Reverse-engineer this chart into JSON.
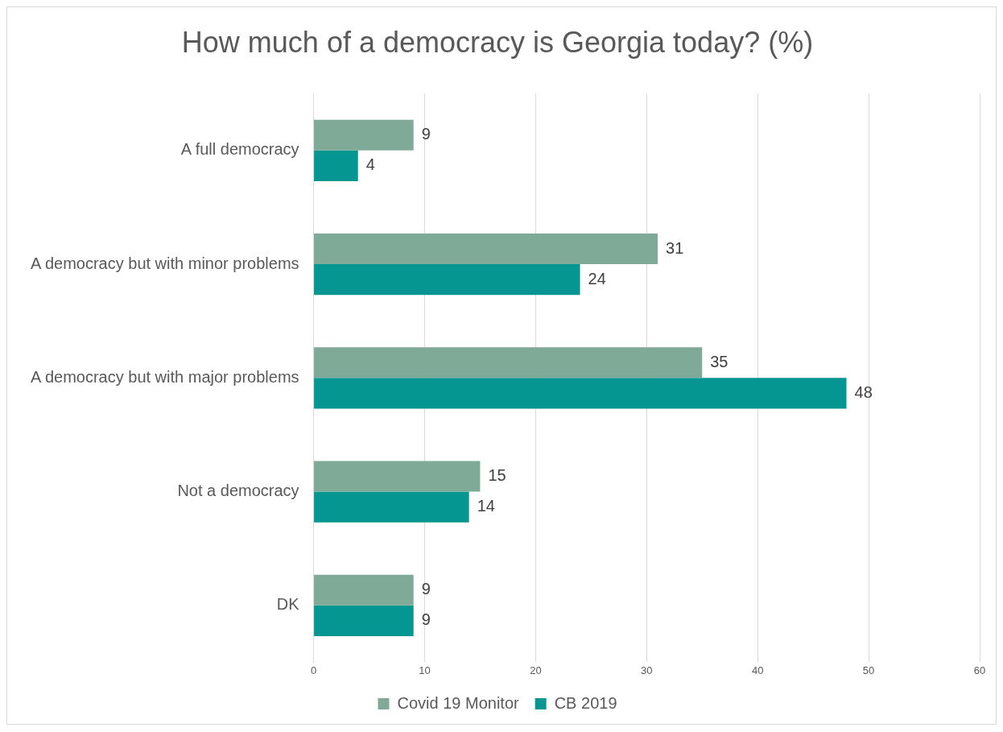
{
  "chart_data": {
    "type": "bar",
    "orientation": "horizontal",
    "title": "How much of a democracy is Georgia today? (%)",
    "categories": [
      "A full democracy",
      "A democracy but with minor problems",
      "A democracy but with major problems",
      "Not a democracy",
      "DK"
    ],
    "series": [
      {
        "name": "Covid 19 Monitor",
        "color": "#7faa98",
        "values": [
          9,
          31,
          35,
          15,
          9
        ]
      },
      {
        "name": "CB 2019",
        "color": "#069692",
        "values": [
          4,
          24,
          48,
          14,
          9
        ]
      }
    ],
    "xlim": [
      0,
      60
    ],
    "xticks": [
      0,
      10,
      20,
      30,
      40,
      50,
      60
    ],
    "grid": "x",
    "legend": "bottom",
    "data_labels": true
  }
}
